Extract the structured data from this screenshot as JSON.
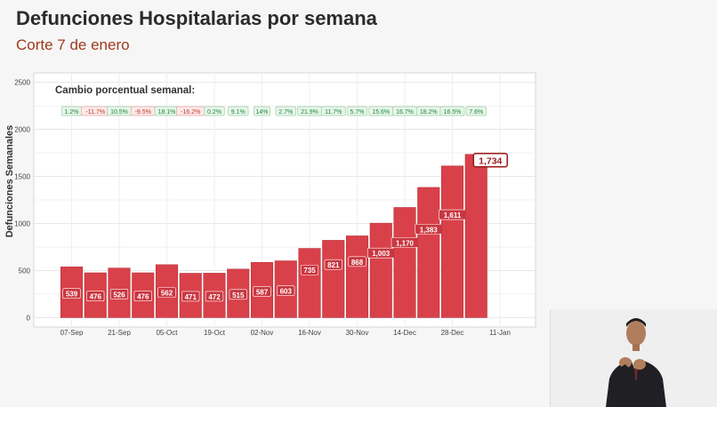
{
  "header": {
    "title": "Defunciones Hospitalarias por semana",
    "subtitle": "Corte 7 de enero"
  },
  "colors": {
    "bar": "#d9414a",
    "positive": "#1b8a3a",
    "negative": "#c0392b",
    "title": "#2b2b2b",
    "subtitle": "#9e3a1e"
  },
  "chart_data": {
    "type": "bar",
    "title": "",
    "ylabel": "Defunciones Semanales",
    "xlabel": "",
    "ylim": [
      -100,
      2600
    ],
    "yticks": [
      0,
      500,
      1000,
      1500,
      2000,
      2500
    ],
    "annotation_title": "Cambio porcentual semanal:",
    "x_tick_labels": [
      "07-Sep",
      "21-Sep",
      "05-Oct",
      "19-Oct",
      "02-Nov",
      "16-Nov",
      "30-Nov",
      "14-Dec",
      "28-Dec",
      "11-Jan"
    ],
    "values": [
      539,
      476,
      526,
      476,
      562,
      471,
      472,
      515,
      587,
      603,
      735,
      821,
      868,
      1003,
      1170,
      1383,
      1611,
      1734
    ],
    "value_labels": [
      "539",
      "476",
      "526",
      "476",
      "562",
      "471",
      "472",
      "515",
      "587",
      "603",
      "735",
      "821",
      "868",
      "1,003",
      "1,170",
      "1,383",
      "1,611",
      "1,734"
    ],
    "pct_change": [
      "1.2%",
      "-11.7%",
      "10.5%",
      "-9.5%",
      "18.1%",
      "-16.2%",
      "0.2%",
      "9.1%",
      "14%",
      "2.7%",
      "21.9%",
      "11.7%",
      "5.7%",
      "15.6%",
      "16.7%",
      "18.2%",
      "16.5%",
      "7.6%"
    ],
    "highlight_last": true,
    "grid": true,
    "legend": "none"
  }
}
